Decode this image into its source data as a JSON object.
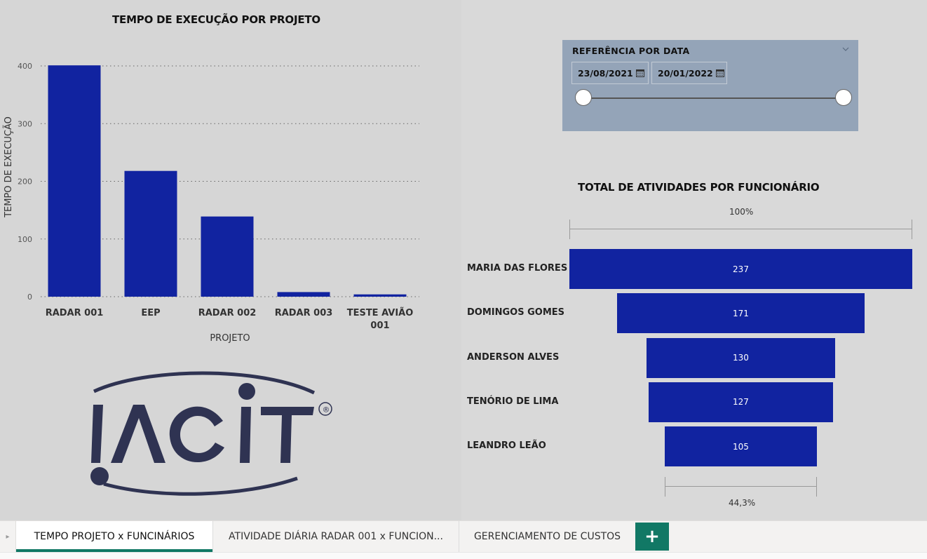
{
  "bar_chart": {
    "chart_data": {
      "type": "bar",
      "title": "TEMPO DE EXECUÇÃO POR PROJETO",
      "xlabel": "PROJETO",
      "ylabel": "TEMPO DE EXECUÇÃO",
      "categories": [
        "RADAR 001",
        "EEP",
        "RADAR 002",
        "RADAR 003",
        "TESTE AVIÃO 001"
      ],
      "values": [
        401,
        218,
        139,
        8,
        4
      ],
      "ylim": [
        0,
        400
      ],
      "yticks": [
        0,
        100,
        200,
        300,
        400
      ],
      "grid": true,
      "color": "#1123a0"
    }
  },
  "slicer": {
    "title": "REFERÊNCIA POR DATA",
    "start_date": "23/08/2021",
    "end_date": "20/01/2022",
    "chevron_icon": "chevron-down-icon",
    "calendar_icon": "calendar-icon"
  },
  "funnel": {
    "chart_data": {
      "type": "bar",
      "title": "TOTAL DE ATIVIDADES POR FUNCIONÁRIO",
      "categories": [
        "MARIA DAS FLORES",
        "DOMINGOS GOMES",
        "ANDERSON ALVES",
        "TENÓRIO DE LIMA",
        "LEANDRO LEÃO"
      ],
      "values": [
        237,
        171,
        130,
        127,
        105
      ],
      "top_percent": "100%",
      "bottom_percent": "44,3%",
      "color": "#1123a0"
    }
  },
  "logo": {
    "text": "IACIT",
    "registered": "®"
  },
  "tabs": [
    {
      "label": "TEMPO PROJETO x FUNCINÁRIOS",
      "active": true
    },
    {
      "label": "ATIVIDADE DIÁRIA RADAR 001 x FUNCION...",
      "active": false
    },
    {
      "label": "GERENCIAMENTO DE CUSTOS",
      "active": false
    }
  ],
  "add_tab_label": "+",
  "colors": {
    "accent": "#117865",
    "bar": "#1123a0",
    "slicer_bg": "#94a4b8"
  }
}
